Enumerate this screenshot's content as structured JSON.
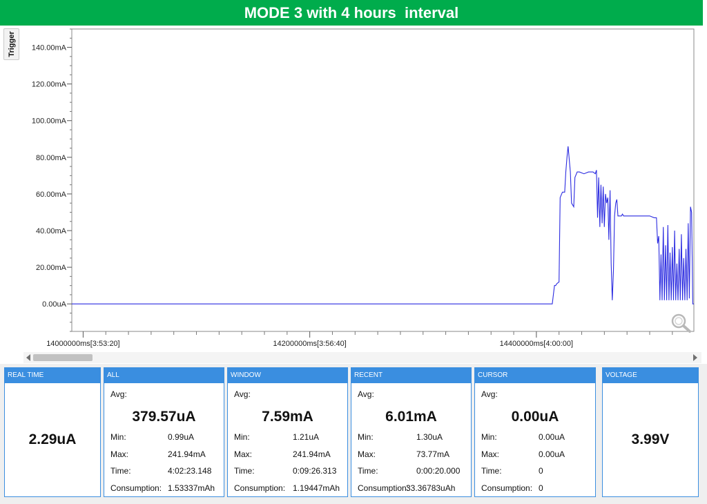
{
  "banner": {
    "title": "MODE 3 with 4 hours  interval"
  },
  "trigger": {
    "label": "Trigger"
  },
  "chart_data": {
    "type": "line",
    "title": "",
    "xlabel": "",
    "ylabel": "",
    "xlim": [
      13990000,
      14539000
    ],
    "ylim": [
      -15,
      150
    ],
    "grid": false,
    "y_ticks": [
      {
        "value": 0,
        "label": "0.00uA"
      },
      {
        "value": 20,
        "label": "20.00mA"
      },
      {
        "value": 40,
        "label": "40.00mA"
      },
      {
        "value": 60,
        "label": "60.00mA"
      },
      {
        "value": 80,
        "label": "80.00mA"
      },
      {
        "value": 100,
        "label": "100.00mA"
      },
      {
        "value": 120,
        "label": "120.00mA"
      },
      {
        "value": 140,
        "label": "140.00mA"
      }
    ],
    "x_ticks": [
      {
        "value": 14000000,
        "label": "14000000ms[3:53:20]"
      },
      {
        "value": 14200000,
        "label": "14200000ms[3:56:40]"
      },
      {
        "value": 14400000,
        "label": "14400000ms[4:00:00]"
      }
    ],
    "series": [
      {
        "color": "#2a2ae0",
        "x": [
          13990000,
          14414000,
          14416000,
          14417000,
          14418000,
          14420000,
          14421000,
          14423000,
          14425000,
          14426000,
          14427000,
          14428000,
          14430000,
          14431000,
          14433000,
          14434000,
          14436000,
          14438000,
          14442000,
          14446000,
          14450000,
          14452000,
          14453000,
          14454000,
          14455000,
          14456000,
          14457000,
          14458000,
          14459000,
          14460000,
          14461000,
          14462000,
          14463000,
          14464000,
          14465000,
          14466000,
          14467000,
          14468000,
          14469000,
          14470000,
          14471000,
          14472000,
          14473000,
          14474000,
          14475000,
          14476000,
          14477000,
          14478000,
          14479000,
          14480000,
          14481000,
          14483000,
          14485000,
          14487000,
          14490000,
          14494000,
          14500000,
          14504000,
          14506000,
          14507000,
          14508000,
          14509000,
          14510000,
          14511000,
          14512000,
          14513000,
          14514000,
          14515000,
          14516000,
          14517000,
          14518000,
          14519000,
          14520000,
          14521000,
          14522000,
          14523000,
          14524000,
          14525000,
          14526000,
          14527000,
          14528000,
          14529000,
          14530000,
          14531000,
          14532000,
          14533000,
          14534000,
          14535000,
          14536000,
          14537000,
          14538000,
          14539000
        ],
        "y": [
          0,
          0,
          10,
          10,
          11,
          12,
          58,
          61,
          61,
          72,
          80,
          86,
          72,
          55,
          53,
          69,
          72,
          72,
          71,
          72,
          72,
          71,
          73,
          47,
          69,
          42,
          65,
          44,
          64,
          42,
          60,
          55,
          58,
          35,
          62,
          22,
          2,
          18,
          48,
          55,
          57,
          48,
          48,
          48,
          48,
          49,
          48,
          48,
          48,
          48,
          48,
          48,
          48,
          48,
          48,
          48,
          48,
          47,
          47,
          33,
          37,
          2,
          27,
          2,
          42,
          2,
          32,
          2,
          43,
          2,
          28,
          2,
          31,
          2,
          40,
          2,
          22,
          2,
          30,
          2,
          38,
          2,
          25,
          2,
          30,
          2,
          44,
          3,
          53,
          50,
          0,
          0
        ]
      }
    ]
  },
  "panels": {
    "realtime": {
      "header": "REAL TIME",
      "value": "2.29uA"
    },
    "all": {
      "header": "ALL",
      "avg_label": "Avg:",
      "avg": "379.57uA",
      "min_label": "Min:",
      "min": "0.99uA",
      "max_label": "Max:",
      "max": "241.94mA",
      "time_label": "Time:",
      "time": "4:02:23.148",
      "cons_label": "Consumption:",
      "cons": "1.53337mAh"
    },
    "window": {
      "header": "WINDOW",
      "avg_label": "Avg:",
      "avg": "7.59mA",
      "min_label": "Min:",
      "min": "1.21uA",
      "max_label": "Max:",
      "max": "241.94mA",
      "time_label": "Time:",
      "time": "0:09:26.313",
      "cons_label": "Consumption:",
      "cons": "1.19447mAh"
    },
    "recent": {
      "header": "RECENT",
      "avg_label": "Avg:",
      "avg": "6.01mA",
      "min_label": "Min:",
      "min": "1.30uA",
      "max_label": "Max:",
      "max": "73.77mA",
      "time_label": "Time:",
      "time": "0:00:20.000",
      "cons_label": "Consumption:",
      "cons": "33.36783uAh"
    },
    "cursor": {
      "header": "CURSOR",
      "avg_label": "Avg:",
      "avg": "0.00uA",
      "min_label": "Min:",
      "min": "0.00uA",
      "max_label": "Max:",
      "max": "0.00uA",
      "time_label": "Time:",
      "time": "0",
      "cons_label": "Consumption:",
      "cons": "0"
    },
    "voltage": {
      "header": "VOLTAGE",
      "value": "3.99V"
    }
  },
  "icons": {
    "zoom": "magnifier-icon",
    "scroll_left": "arrow-left-icon",
    "scroll_right": "arrow-right-icon"
  },
  "colors": {
    "banner": "#00ac4c",
    "panel_header": "#3a8ee0",
    "trace": "#2a2ae0"
  }
}
